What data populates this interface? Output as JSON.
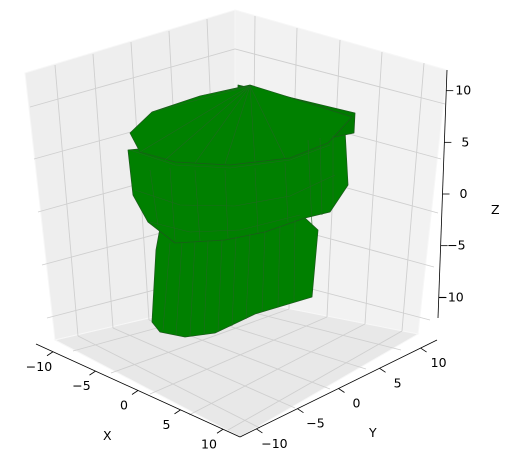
{
  "chart_data": {
    "type": "surface3d",
    "object": "toilet mesh",
    "xlabel": "X",
    "ylabel": "Y",
    "zlabel": "Z",
    "x_ticks": [
      -10,
      -5,
      0,
      5,
      10
    ],
    "y_ticks": [
      -10,
      -5,
      0,
      5,
      10
    ],
    "z_ticks": [
      -10,
      -5,
      0,
      5,
      10
    ],
    "xlim": [
      -12,
      12
    ],
    "ylim": [
      -12,
      12
    ],
    "zlim": [
      -12,
      12
    ],
    "grid": true,
    "colors": {
      "mesh": "#008000",
      "edges": "#1a5c1a",
      "pane_back": "#eeeeee",
      "pane_side": "#f2f2f2",
      "pane_floor": "#e8e8e8",
      "grid": "#cfcfcf"
    }
  }
}
